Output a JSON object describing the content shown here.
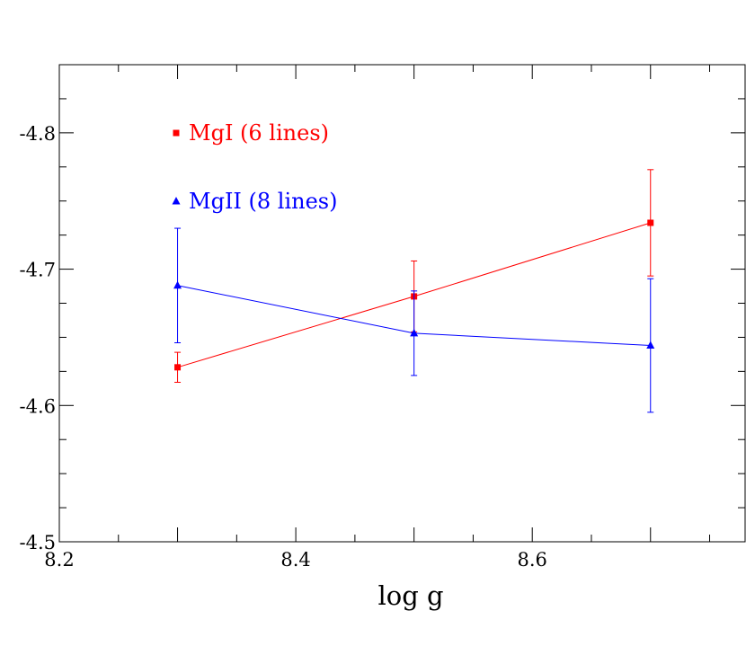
{
  "chart_data": {
    "type": "line",
    "title": "",
    "xlabel": "log g",
    "ylabel": "",
    "xlim": [
      8.2,
      8.78
    ],
    "ylim": [
      -4.5,
      -4.85
    ],
    "x_ticks": [
      {
        "value": 8.2,
        "label": "8.2"
      },
      {
        "value": 8.4,
        "label": "8.4"
      },
      {
        "value": 8.6,
        "label": "8.6"
      }
    ],
    "y_ticks": [
      {
        "value": -4.5,
        "label": "-4.5"
      },
      {
        "value": -4.6,
        "label": "-4.6"
      },
      {
        "value": -4.7,
        "label": "-4.7"
      },
      {
        "value": -4.8,
        "label": "-4.8"
      }
    ],
    "x_minor_step": 0.05,
    "y_minor_step": 0.025,
    "grid": false,
    "legend_position": "top-left",
    "series": [
      {
        "name": "MgI (6 lines)",
        "color": "#ff0000",
        "marker": "square",
        "x": [
          8.3,
          8.5,
          8.7
        ],
        "y": [
          -4.628,
          -4.68,
          -4.734
        ],
        "err": [
          0.011,
          0.026,
          0.039
        ]
      },
      {
        "name": "MgII (8 lines)",
        "color": "#0000ff",
        "marker": "triangle",
        "x": [
          8.3,
          8.5,
          8.7
        ],
        "y": [
          -4.688,
          -4.653,
          -4.644
        ],
        "err": [
          0.042,
          0.031,
          0.049
        ]
      }
    ]
  }
}
